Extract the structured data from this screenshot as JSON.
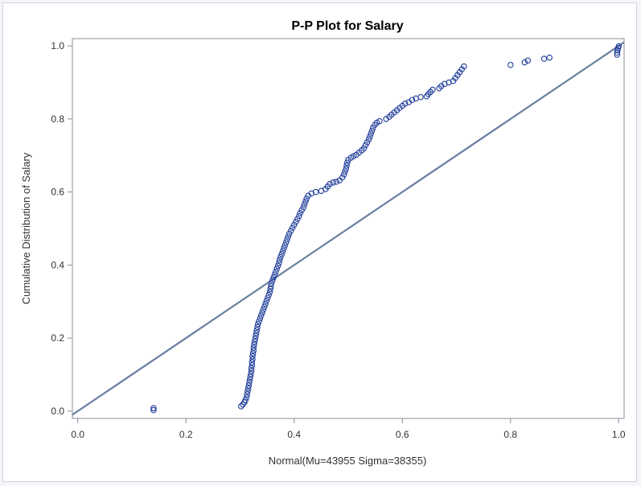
{
  "chart_data": {
    "type": "scatter",
    "title": "P-P Plot for Salary",
    "xlabel": "Normal(Mu=43955 Sigma=38355)",
    "ylabel": "Cumulative Distribution of Salary",
    "xlim": [
      -0.01,
      1.01
    ],
    "ylim": [
      -0.02,
      1.02
    ],
    "x_ticks": [
      "0.0",
      "0.2",
      "0.4",
      "0.6",
      "0.8",
      "1.0"
    ],
    "y_ticks": [
      "0.0",
      "0.2",
      "0.4",
      "0.6",
      "0.8",
      "1.0"
    ],
    "grid": false,
    "colors": {
      "markers": "#1f3d99",
      "reference_line": "#6b7fa0",
      "axis": "#8a8f99"
    },
    "reference_line": {
      "from": [
        -0.01,
        -0.01
      ],
      "to": [
        1.01,
        1.01
      ]
    },
    "series": [
      {
        "marker": "circle",
        "points": [
          [
            0.14,
            0.003
          ],
          [
            0.14,
            0.008
          ],
          [
            0.302,
            0.013
          ],
          [
            0.305,
            0.018
          ],
          [
            0.308,
            0.024
          ],
          [
            0.31,
            0.03
          ],
          [
            0.312,
            0.038
          ],
          [
            0.313,
            0.046
          ],
          [
            0.314,
            0.054
          ],
          [
            0.315,
            0.062
          ],
          [
            0.316,
            0.07
          ],
          [
            0.317,
            0.078
          ],
          [
            0.318,
            0.086
          ],
          [
            0.319,
            0.094
          ],
          [
            0.32,
            0.102
          ],
          [
            0.321,
            0.11
          ],
          [
            0.321,
            0.118
          ],
          [
            0.322,
            0.126
          ],
          [
            0.322,
            0.134
          ],
          [
            0.323,
            0.142
          ],
          [
            0.323,
            0.15
          ],
          [
            0.324,
            0.158
          ],
          [
            0.325,
            0.166
          ],
          [
            0.325,
            0.174
          ],
          [
            0.326,
            0.182
          ],
          [
            0.327,
            0.19
          ],
          [
            0.328,
            0.198
          ],
          [
            0.329,
            0.206
          ],
          [
            0.33,
            0.214
          ],
          [
            0.331,
            0.222
          ],
          [
            0.332,
            0.23
          ],
          [
            0.333,
            0.238
          ],
          [
            0.335,
            0.246
          ],
          [
            0.337,
            0.254
          ],
          [
            0.339,
            0.262
          ],
          [
            0.341,
            0.27
          ],
          [
            0.343,
            0.278
          ],
          [
            0.345,
            0.286
          ],
          [
            0.347,
            0.294
          ],
          [
            0.349,
            0.302
          ],
          [
            0.351,
            0.31
          ],
          [
            0.353,
            0.318
          ],
          [
            0.355,
            0.326
          ],
          [
            0.356,
            0.334
          ],
          [
            0.357,
            0.342
          ],
          [
            0.358,
            0.35
          ],
          [
            0.36,
            0.358
          ],
          [
            0.362,
            0.366
          ],
          [
            0.364,
            0.374
          ],
          [
            0.366,
            0.382
          ],
          [
            0.368,
            0.39
          ],
          [
            0.37,
            0.398
          ],
          [
            0.372,
            0.406
          ],
          [
            0.373,
            0.414
          ],
          [
            0.375,
            0.422
          ],
          [
            0.377,
            0.43
          ],
          [
            0.379,
            0.438
          ],
          [
            0.381,
            0.446
          ],
          [
            0.383,
            0.454
          ],
          [
            0.385,
            0.462
          ],
          [
            0.387,
            0.47
          ],
          [
            0.389,
            0.478
          ],
          [
            0.391,
            0.486
          ],
          [
            0.394,
            0.494
          ],
          [
            0.397,
            0.502
          ],
          [
            0.4,
            0.51
          ],
          [
            0.403,
            0.518
          ],
          [
            0.406,
            0.526
          ],
          [
            0.409,
            0.534
          ],
          [
            0.411,
            0.542
          ],
          [
            0.414,
            0.55
          ],
          [
            0.417,
            0.558
          ],
          [
            0.419,
            0.566
          ],
          [
            0.421,
            0.574
          ],
          [
            0.423,
            0.582
          ],
          [
            0.426,
            0.59
          ],
          [
            0.432,
            0.596
          ],
          [
            0.44,
            0.6
          ],
          [
            0.45,
            0.603
          ],
          [
            0.458,
            0.608
          ],
          [
            0.462,
            0.615
          ],
          [
            0.466,
            0.622
          ],
          [
            0.472,
            0.626
          ],
          [
            0.478,
            0.628
          ],
          [
            0.484,
            0.632
          ],
          [
            0.489,
            0.64
          ],
          [
            0.492,
            0.648
          ],
          [
            0.494,
            0.656
          ],
          [
            0.496,
            0.664
          ],
          [
            0.497,
            0.672
          ],
          [
            0.498,
            0.68
          ],
          [
            0.5,
            0.688
          ],
          [
            0.505,
            0.694
          ],
          [
            0.51,
            0.698
          ],
          [
            0.515,
            0.702
          ],
          [
            0.52,
            0.708
          ],
          [
            0.525,
            0.714
          ],
          [
            0.529,
            0.72
          ],
          [
            0.532,
            0.728
          ],
          [
            0.535,
            0.736
          ],
          [
            0.538,
            0.744
          ],
          [
            0.54,
            0.752
          ],
          [
            0.542,
            0.76
          ],
          [
            0.544,
            0.768
          ],
          [
            0.546,
            0.776
          ],
          [
            0.549,
            0.784
          ],
          [
            0.553,
            0.79
          ],
          [
            0.558,
            0.794
          ],
          [
            0.57,
            0.8
          ],
          [
            0.576,
            0.806
          ],
          [
            0.58,
            0.812
          ],
          [
            0.585,
            0.818
          ],
          [
            0.59,
            0.824
          ],
          [
            0.595,
            0.83
          ],
          [
            0.6,
            0.836
          ],
          [
            0.605,
            0.842
          ],
          [
            0.612,
            0.846
          ],
          [
            0.618,
            0.852
          ],
          [
            0.625,
            0.856
          ],
          [
            0.634,
            0.86
          ],
          [
            0.645,
            0.862
          ],
          [
            0.648,
            0.868
          ],
          [
            0.652,
            0.874
          ],
          [
            0.656,
            0.88
          ],
          [
            0.668,
            0.884
          ],
          [
            0.672,
            0.89
          ],
          [
            0.678,
            0.896
          ],
          [
            0.686,
            0.9
          ],
          [
            0.694,
            0.904
          ],
          [
            0.698,
            0.912
          ],
          [
            0.702,
            0.92
          ],
          [
            0.706,
            0.928
          ],
          [
            0.71,
            0.936
          ],
          [
            0.714,
            0.944
          ],
          [
            0.8,
            0.948
          ],
          [
            0.826,
            0.955
          ],
          [
            0.832,
            0.96
          ],
          [
            0.862,
            0.965
          ],
          [
            0.872,
            0.968
          ],
          [
            0.997,
            0.976
          ],
          [
            0.997,
            0.982
          ],
          [
            0.998,
            0.988
          ],
          [
            0.999,
            0.994
          ],
          [
            1.0,
            0.999
          ]
        ]
      }
    ]
  }
}
